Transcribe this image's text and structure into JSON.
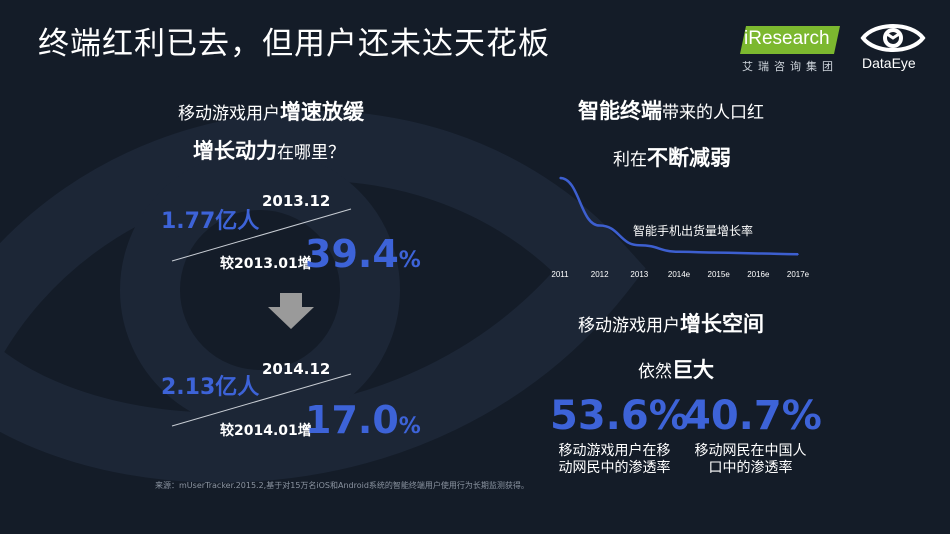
{
  "slide": {
    "title": "终端红利已去，但用户还未达天花板"
  },
  "logos": {
    "iresearch_name": "iResearch",
    "iresearch_cn": "艾瑞咨询集团",
    "dataeye_name": "DataEye"
  },
  "left": {
    "question_line1_normal": "移动游戏用户",
    "question_line1_bold": "增速放缓",
    "question_line2_bold": "增长动力",
    "question_line2_normal": "在哪里？",
    "block1": {
      "date": "2013.12",
      "users": "1.77亿人",
      "compare_label": "较2013.01增",
      "growth": "39.4",
      "growth_unit": "%"
    },
    "block2": {
      "date": "2014.12",
      "users": "2.13亿人",
      "compare_label": "较2014.01增",
      "growth": "17.0",
      "growth_unit": "%"
    }
  },
  "right": {
    "head1_bold": "智能终端",
    "head1_normal": "带来的人口红",
    "head2_normal": "利在",
    "head2_bold": "不断减弱",
    "head3_normal": "移动游戏用户",
    "head3_bold": "增长空间",
    "head4_normal": "依然",
    "head4_bold": "巨大",
    "stat1_value": "53.6%",
    "stat1_desc_line1": "移动游戏用户在移",
    "stat1_desc_line2": "动网民中的渗透率",
    "stat2_value": "40.7%",
    "stat2_desc_line1": "移动网民在中国人",
    "stat2_desc_line2": "口中的渗透率"
  },
  "chart_data": {
    "type": "line",
    "title": "",
    "series_label": "智能手机出货量增长率",
    "x": [
      "2011",
      "2012",
      "2013",
      "2014e",
      "2015e",
      "2016e",
      "2017e"
    ],
    "values": [
      100,
      42,
      18,
      10,
      9,
      8,
      7
    ],
    "line_color": "#3d5fd0",
    "grid": false
  },
  "footer": {
    "source": "来源：mUserTracker.2015.2,基于对15万名iOS和Android系统的智能终端用户使用行为长期监测获得。"
  },
  "colors": {
    "background": "#141c28",
    "accent_blue": "#3d63d8",
    "iresearch_green": "#7cb82f",
    "arrow_gray": "#9a9a9a"
  }
}
